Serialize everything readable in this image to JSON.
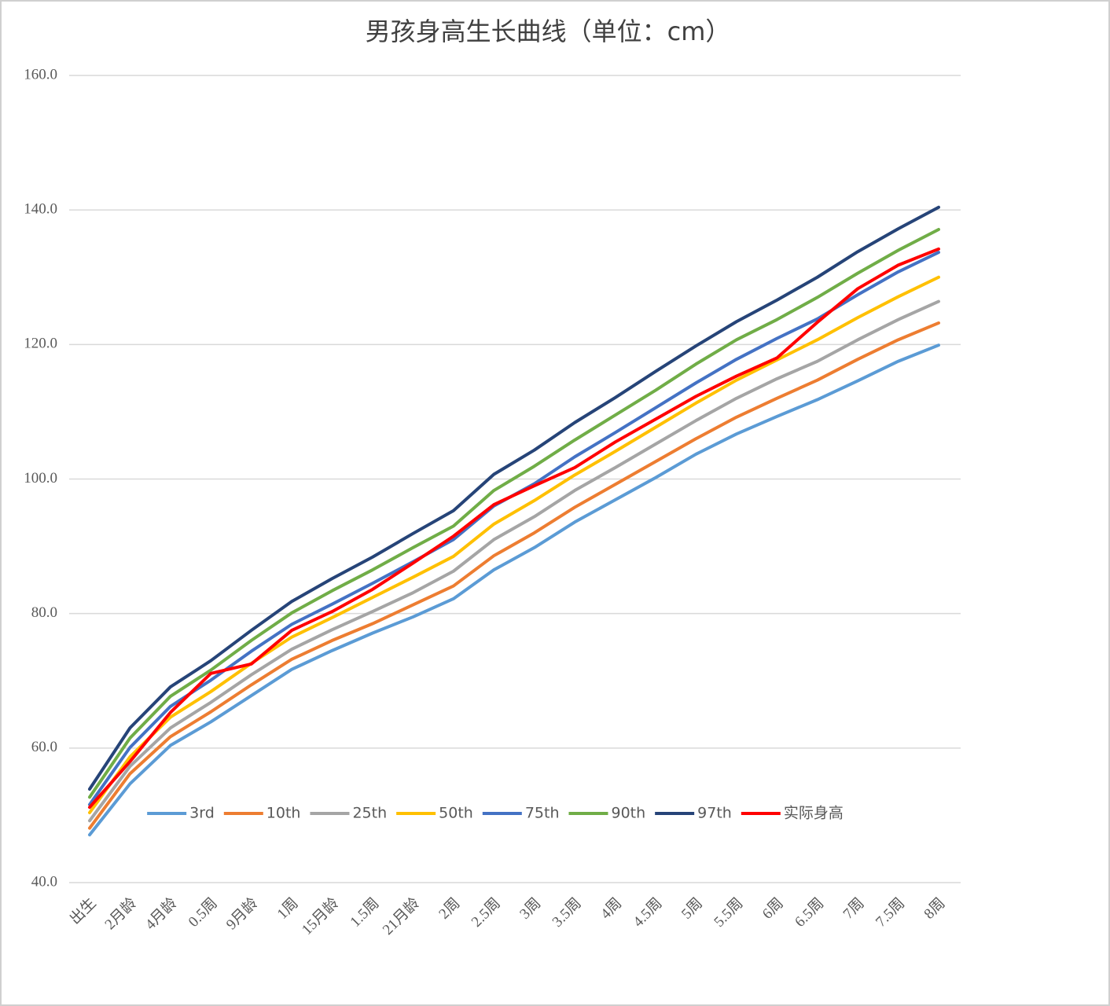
{
  "chart_data": {
    "type": "line",
    "title": "男孩身高生长曲线（单位：cm）",
    "categories": [
      "出生",
      "2月龄",
      "4月龄",
      "0.5周",
      "9月龄",
      "1周",
      "15月龄",
      "1.5周",
      "21月龄",
      "2周",
      "2.5周",
      "3周",
      "3.5周",
      "4周",
      "4.5周",
      "5周",
      "5.5周",
      "6周",
      "6.5周",
      "7周",
      "7.5周",
      "8周"
    ],
    "series": [
      {
        "name": "3rd",
        "color": "#5b9bd5",
        "values": [
          47.1,
          54.7,
          60.4,
          63.9,
          67.8,
          71.7,
          74.5,
          77.1,
          79.5,
          82.2,
          86.5,
          89.8,
          93.6,
          96.9,
          100.2,
          103.7,
          106.7,
          109.3,
          111.8,
          114.6,
          117.5,
          119.9
        ]
      },
      {
        "name": "10th",
        "color": "#ed7d31",
        "values": [
          48.1,
          56.2,
          61.7,
          65.4,
          69.4,
          73.2,
          76.0,
          78.5,
          81.3,
          84.1,
          88.6,
          92.0,
          95.8,
          99.2,
          102.6,
          106.0,
          109.2,
          112.0,
          114.7,
          117.8,
          120.7,
          123.2
        ]
      },
      {
        "name": "25th",
        "color": "#a5a5a5",
        "values": [
          49.2,
          57.3,
          63.0,
          66.8,
          70.9,
          74.7,
          77.6,
          80.3,
          83.1,
          86.3,
          91.0,
          94.4,
          98.3,
          101.7,
          105.2,
          108.7,
          112.0,
          114.9,
          117.5,
          120.7,
          123.7,
          126.4
        ]
      },
      {
        "name": "50th",
        "color": "#ffc000",
        "values": [
          50.4,
          58.7,
          64.6,
          68.4,
          72.6,
          76.5,
          79.4,
          82.4,
          85.4,
          88.5,
          93.3,
          96.8,
          100.6,
          104.1,
          107.7,
          111.3,
          114.7,
          117.7,
          120.7,
          124.0,
          127.1,
          130.0
        ]
      },
      {
        "name": "75th",
        "color": "#4472c4",
        "values": [
          51.6,
          60.1,
          66.2,
          70.1,
          74.4,
          78.4,
          81.4,
          84.5,
          87.7,
          91.0,
          96.0,
          99.3,
          103.3,
          106.9,
          110.6,
          114.3,
          117.8,
          120.9,
          123.8,
          127.4,
          130.8,
          133.7
        ]
      },
      {
        "name": "90th",
        "color": "#70ad47",
        "values": [
          52.7,
          61.5,
          67.7,
          71.6,
          76.0,
          80.1,
          83.4,
          86.5,
          89.8,
          93.0,
          98.3,
          101.9,
          105.8,
          109.5,
          113.2,
          117.1,
          120.7,
          123.7,
          127.0,
          130.6,
          134.0,
          137.1
        ]
      },
      {
        "name": "97th",
        "color": "#264478",
        "values": [
          53.9,
          63.0,
          69.1,
          73.0,
          77.5,
          81.8,
          85.2,
          88.4,
          91.9,
          95.3,
          100.7,
          104.3,
          108.4,
          112.1,
          116.0,
          119.8,
          123.4,
          126.6,
          130.0,
          133.8,
          137.2,
          140.4
        ]
      },
      {
        "name": "实际身高",
        "color": "#ff0000",
        "values": [
          51.2,
          58.0,
          65.3,
          71.1,
          72.5,
          77.5,
          80.3,
          83.6,
          87.5,
          91.5,
          96.2,
          99.0,
          101.7,
          105.5,
          108.9,
          112.3,
          115.3,
          118.0,
          123.3,
          128.3,
          131.8,
          134.2
        ]
      }
    ],
    "ylim": [
      40,
      160
    ],
    "yticks": [
      {
        "value": 40,
        "label": "40.0"
      },
      {
        "value": 60,
        "label": "60.0"
      },
      {
        "value": 80,
        "label": "80.0"
      },
      {
        "value": 100,
        "label": "100.0"
      },
      {
        "value": 120,
        "label": "120.0"
      },
      {
        "value": 140,
        "label": "140.0"
      },
      {
        "value": 160,
        "label": "160.0"
      }
    ],
    "grid": true,
    "legend": "inside-bottom"
  }
}
